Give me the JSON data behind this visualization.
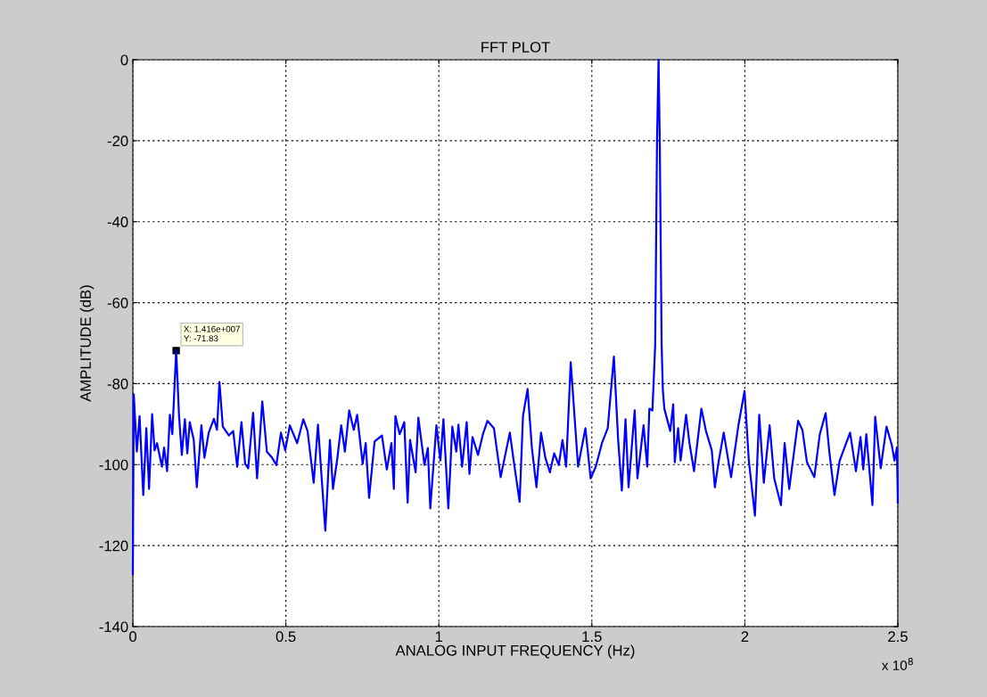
{
  "chart_data": {
    "type": "line",
    "title": "FFT PLOT",
    "xlabel": "ANALOG INPUT FREQUENCY (Hz)",
    "ylabel": "AMPLITUDE (dB)",
    "annotations": [
      {
        "text": "X: 1.416e+007\nY: -71.83",
        "x": 0.1416,
        "y": -71.83
      },
      "x 10$^{8}$"
    ],
    "series": [
      {
        "color": "#0000ff",
        "x": [
          0.0,
          0.003,
          0.013,
          0.022,
          0.034,
          0.044,
          0.053,
          0.063,
          0.071,
          0.079,
          0.095,
          0.102,
          0.112,
          0.121,
          0.129,
          0.1416,
          0.151,
          0.16,
          0.17,
          0.178,
          0.186,
          0.199,
          0.209,
          0.224,
          0.234,
          0.248,
          0.265,
          0.275,
          0.283,
          0.294,
          0.314,
          0.328,
          0.341,
          0.355,
          0.367,
          0.377,
          0.393,
          0.406,
          0.423,
          0.438,
          0.455,
          0.469,
          0.484,
          0.498,
          0.513,
          0.537,
          0.557,
          0.571,
          0.591,
          0.605,
          0.629,
          0.644,
          0.654,
          0.668,
          0.681,
          0.693,
          0.707,
          0.722,
          0.733,
          0.751,
          0.761,
          0.772,
          0.79,
          0.814,
          0.83,
          0.845,
          0.853,
          0.858,
          0.872,
          0.887,
          0.898,
          0.906,
          0.924,
          0.933,
          0.953,
          0.964,
          0.972,
          0.992,
          1.005,
          1.015,
          1.031,
          1.044,
          1.057,
          1.064,
          1.076,
          1.091,
          1.1,
          1.11,
          1.128,
          1.144,
          1.159,
          1.18,
          1.202,
          1.232,
          1.246,
          1.264,
          1.275,
          1.29,
          1.304,
          1.319,
          1.334,
          1.348,
          1.363,
          1.377,
          1.392,
          1.404,
          1.416,
          1.431,
          1.455,
          1.479,
          1.496,
          1.513,
          1.533,
          1.552,
          1.572,
          1.586,
          1.598,
          1.61,
          1.62,
          1.64,
          1.649,
          1.669,
          1.681,
          1.688,
          1.698,
          1.707,
          1.713,
          1.718,
          1.722,
          1.728,
          1.732,
          1.737,
          1.746,
          1.756,
          1.766,
          1.771,
          1.782,
          1.79,
          1.808,
          1.819,
          1.834,
          1.858,
          1.873,
          1.892,
          1.902,
          1.914,
          1.931,
          1.955,
          1.979,
          1.999,
          2.013,
          2.033,
          2.047,
          2.062,
          2.081,
          2.096,
          2.118,
          2.13,
          2.145,
          2.174,
          2.188,
          2.203,
          2.227,
          2.245,
          2.264,
          2.276,
          2.293,
          2.31,
          2.344,
          2.363,
          2.378,
          2.387,
          2.397,
          2.417,
          2.426,
          2.444,
          2.463,
          2.48,
          2.489,
          2.497,
          2.5
        ],
        "values": [
          -127,
          -82.6,
          -96.8,
          -88,
          -107.5,
          -91,
          -106,
          -87.5,
          -96.5,
          -94.7,
          -100.5,
          -95.8,
          -101.6,
          -87.7,
          -92.5,
          -71.83,
          -88,
          -97.6,
          -88.8,
          -97.2,
          -89.5,
          -93.9,
          -105.6,
          -90.3,
          -98.3,
          -92.1,
          -88.7,
          -91.4,
          -79.6,
          -90.6,
          -92.8,
          -91.7,
          -100.5,
          -89.5,
          -99.8,
          -100.9,
          -87.2,
          -103.4,
          -84.4,
          -96.8,
          -98.3,
          -100.1,
          -92.1,
          -96.5,
          -90.3,
          -94.7,
          -88.8,
          -91.7,
          -104.5,
          -90.1,
          -116.3,
          -93.9,
          -106,
          -98.6,
          -90.3,
          -96.8,
          -86.6,
          -91.4,
          -87.7,
          -99.8,
          -94.7,
          -108.2,
          -94.3,
          -92.8,
          -101.2,
          -94.7,
          -106,
          -88,
          -92.5,
          -89.5,
          -109.4,
          -93.9,
          -101.9,
          -88.4,
          -100.1,
          -95.9,
          -110.8,
          -90.3,
          -99,
          -88.8,
          -110.8,
          -90.6,
          -96.8,
          -90.1,
          -100.5,
          -89.5,
          -102.3,
          -93.2,
          -97.6,
          -92.5,
          -89.2,
          -91,
          -103.1,
          -92.1,
          -99.8,
          -109.2,
          -88,
          -81.3,
          -95.8,
          -105.6,
          -92.1,
          -98.3,
          -101.9,
          -97.2,
          -100.1,
          -93.9,
          -100.5,
          -74.7,
          -100.5,
          -91,
          -103.4,
          -100.5,
          -94.7,
          -91,
          -73.3,
          -93.9,
          -106.4,
          -88.8,
          -105.6,
          -86.6,
          -103.4,
          -90.3,
          -100.5,
          -86.2,
          -86.6,
          -70.5,
          -20,
          0,
          -20,
          -70,
          -81.5,
          -86.2,
          -88.8,
          -91.7,
          -85.1,
          -99.4,
          -91,
          -99,
          -87.7,
          -94.7,
          -101.6,
          -86.2,
          -91.7,
          -96.5,
          -105.6,
          -99.4,
          -92.1,
          -103.1,
          -90.3,
          -81.8,
          -99,
          -112.6,
          -87.7,
          -104.5,
          -90.3,
          -103.4,
          -110,
          -94.7,
          -106,
          -89.2,
          -91.4,
          -99.4,
          -103.1,
          -92.5,
          -87.3,
          -96.8,
          -107.5,
          -99,
          -92.1,
          -101.6,
          -93.2,
          -101.2,
          -92.5,
          -110,
          -88.2,
          -100.9,
          -90.6,
          -95.1,
          -99,
          -95.8,
          -109.4
        ]
      }
    ],
    "xlim": [
      0,
      2.5
    ],
    "xticks": [
      0,
      0.5,
      1,
      1.5,
      2,
      2.5
    ],
    "ylim": [
      -140,
      0
    ],
    "yticks": [
      -140,
      -120,
      -100,
      -80,
      -60,
      -40,
      -20,
      0
    ],
    "grid": true,
    "line_style": "solid",
    "marker": "none",
    "legend": false
  }
}
